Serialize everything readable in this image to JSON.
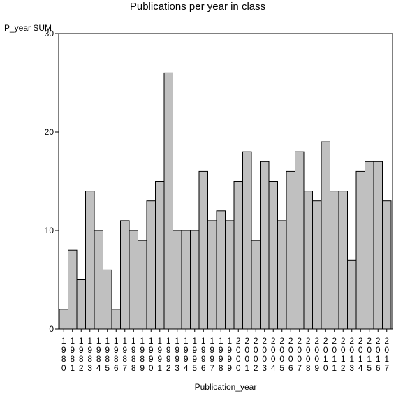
{
  "chart_data": {
    "type": "bar",
    "title": "Publications per year in class",
    "ylabel": "P_year SUM",
    "xlabel": "Publication_year",
    "ylim": [
      0,
      30
    ],
    "yticks": [
      0,
      10,
      20,
      30
    ],
    "grid": false,
    "bar_color": "#c0c0c0",
    "categories": [
      "1980",
      "1981",
      "1982",
      "1983",
      "1984",
      "1985",
      "1986",
      "1987",
      "1988",
      "1989",
      "1990",
      "1991",
      "1992",
      "1993",
      "1994",
      "1995",
      "1996",
      "1997",
      "1998",
      "1999",
      "2000",
      "2001",
      "2002",
      "2003",
      "2004",
      "2005",
      "2006",
      "2007",
      "2008",
      "2009",
      "2010",
      "2011",
      "2012",
      "2013",
      "2014",
      "2015",
      "2016",
      "2017"
    ],
    "values": [
      2,
      8,
      5,
      14,
      10,
      6,
      2,
      11,
      10,
      9,
      13,
      15,
      26,
      10,
      10,
      10,
      16,
      11,
      12,
      11,
      15,
      18,
      9,
      17,
      15,
      11,
      16,
      18,
      14,
      13,
      19,
      14,
      14,
      7,
      16,
      17,
      17,
      13
    ]
  }
}
